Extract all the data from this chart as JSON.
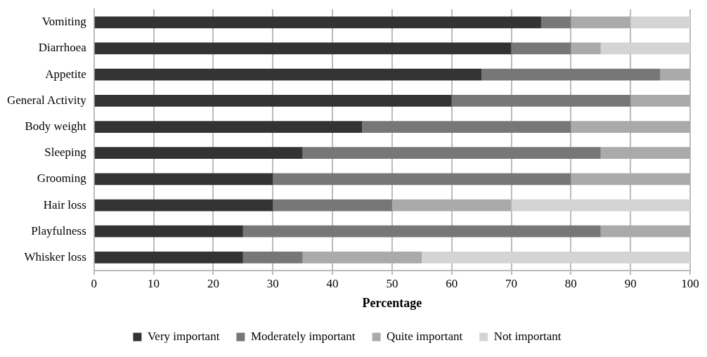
{
  "chart_data": {
    "type": "bar",
    "orientation": "horizontal",
    "stacked": true,
    "xlabel": "Percentage",
    "categories": [
      "Vomiting",
      "Diarrhoea",
      "Appetite",
      "General Activity",
      "Body weight",
      "Sleeping",
      "Grooming",
      "Hair loss",
      "Playfulness",
      "Whisker loss"
    ],
    "series": [
      {
        "name": "Very important",
        "color": "#333333",
        "values": [
          75,
          70,
          65,
          60,
          45,
          35,
          30,
          30,
          25,
          25
        ]
      },
      {
        "name": "Moderately important",
        "color": "#777777",
        "values": [
          5,
          10,
          30,
          30,
          35,
          50,
          50,
          20,
          60,
          10
        ]
      },
      {
        "name": "Quite important",
        "color": "#aaaaaa",
        "values": [
          10,
          5,
          5,
          10,
          20,
          15,
          20,
          20,
          15,
          20
        ]
      },
      {
        "name": "Not important",
        "color": "#d4d4d4",
        "values": [
          10,
          15,
          0,
          0,
          0,
          0,
          0,
          30,
          0,
          45
        ]
      }
    ],
    "xlim": [
      0,
      100
    ],
    "xticks": [
      0,
      10,
      20,
      30,
      40,
      50,
      60,
      70,
      80,
      90,
      100
    ],
    "grid": "x",
    "legend": "bottom"
  }
}
